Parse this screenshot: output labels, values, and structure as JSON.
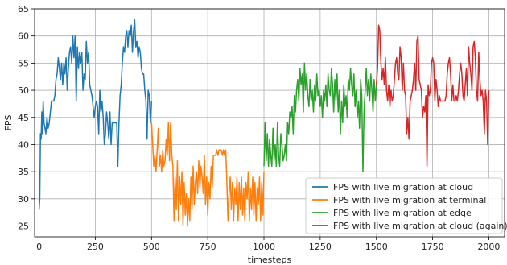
{
  "chart_data": {
    "type": "line",
    "title": "",
    "xlabel": "timesteps",
    "ylabel": "FPS",
    "xlim": [
      -20,
      2070
    ],
    "ylim": [
      23,
      65
    ],
    "xticks": [
      0,
      250,
      500,
      750,
      1000,
      1250,
      1500,
      1750,
      2000
    ],
    "yticks": [
      25,
      30,
      35,
      40,
      45,
      50,
      55,
      60,
      65
    ],
    "grid": true,
    "legend_position": "lower-right",
    "series": [
      {
        "name": "FPS with live migration at cloud",
        "color": "#1f77b4",
        "x": [
          0,
          3,
          6,
          9,
          12,
          15,
          18,
          22,
          26,
          30,
          35,
          40,
          45,
          50,
          55,
          60,
          65,
          70,
          75,
          80,
          85,
          90,
          95,
          100,
          105,
          110,
          115,
          120,
          125,
          130,
          135,
          140,
          145,
          150,
          155,
          160,
          165,
          170,
          175,
          180,
          185,
          190,
          195,
          200,
          205,
          210,
          215,
          220,
          225,
          230,
          235,
          240,
          245,
          250,
          255,
          260,
          265,
          270,
          275,
          280,
          285,
          290,
          295,
          300,
          305,
          310,
          315,
          320,
          325,
          330,
          335,
          340,
          345,
          350,
          355,
          360,
          365,
          370,
          375,
          380,
          385,
          390,
          395,
          400,
          405,
          410,
          415,
          420,
          425,
          430,
          435,
          440,
          445,
          450,
          455,
          460,
          465,
          470,
          475,
          480,
          485,
          490,
          495,
          500
        ],
        "y": [
          28,
          30,
          42,
          41,
          46,
          42,
          48,
          44,
          43,
          42,
          45,
          43,
          44,
          46,
          48,
          48,
          48,
          49,
          52,
          53,
          56,
          54,
          52,
          55,
          51,
          55,
          53,
          56,
          50,
          54,
          57,
          58,
          55,
          60,
          56,
          60,
          48,
          58,
          54,
          57,
          55,
          57,
          50,
          53,
          52,
          59,
          55,
          57,
          51,
          50,
          49,
          47,
          45,
          47,
          48,
          47,
          42,
          50,
          46,
          48,
          45,
          40,
          42,
          46,
          44,
          41,
          46,
          40,
          44,
          44,
          44,
          44,
          44,
          36,
          44,
          49,
          51,
          55,
          58,
          57,
          60,
          61,
          58,
          61,
          60,
          62,
          57,
          61,
          63,
          58,
          59,
          56,
          58,
          57,
          54,
          53,
          53,
          50,
          48,
          41,
          50,
          49,
          44,
          48
        ]
      },
      {
        "name": "FPS with live migration at terminal",
        "color": "#ff7f0e",
        "x": [
          500,
          505,
          510,
          515,
          520,
          525,
          530,
          535,
          540,
          545,
          550,
          555,
          560,
          565,
          570,
          575,
          580,
          585,
          590,
          595,
          600,
          605,
          610,
          615,
          620,
          625,
          630,
          635,
          640,
          645,
          650,
          655,
          660,
          665,
          670,
          675,
          680,
          685,
          690,
          695,
          700,
          705,
          710,
          715,
          720,
          725,
          730,
          735,
          740,
          745,
          750,
          755,
          760,
          765,
          770,
          775,
          780,
          785,
          790,
          795,
          800,
          805,
          810,
          815,
          820,
          825,
          830,
          835,
          840,
          845,
          850,
          855,
          860,
          865,
          870,
          875,
          880,
          885,
          890,
          895,
          900,
          905,
          910,
          915,
          920,
          925,
          930,
          935,
          940,
          945,
          950,
          955,
          960,
          965,
          970,
          975,
          980,
          985,
          990,
          995,
          1000
        ],
        "y": [
          44,
          40,
          36,
          38,
          35,
          39,
          43,
          36,
          38,
          35,
          39,
          36,
          37,
          41,
          38,
          44,
          37,
          44,
          38,
          36,
          26,
          34,
          28,
          37,
          26,
          34,
          29,
          35,
          25,
          33,
          27,
          31,
          25,
          30,
          26,
          34,
          28,
          36,
          29,
          33,
          35,
          31,
          37,
          32,
          36,
          34,
          31,
          38,
          29,
          34,
          27,
          33,
          30,
          36,
          32,
          38,
          38,
          38,
          39,
          38,
          39,
          39,
          39,
          38,
          39,
          38,
          39,
          33,
          26,
          31,
          34,
          28,
          33,
          26,
          32,
          29,
          34,
          26,
          33,
          28,
          34,
          27,
          32,
          26,
          33,
          30,
          35,
          26,
          32,
          28,
          34,
          27,
          33,
          26,
          32,
          29,
          34,
          26,
          33,
          27,
          35
        ]
      },
      {
        "name": "FPS with live migration at edge",
        "color": "#2ca02c",
        "x": [
          1000,
          1005,
          1010,
          1015,
          1020,
          1025,
          1030,
          1035,
          1040,
          1045,
          1050,
          1055,
          1060,
          1065,
          1070,
          1075,
          1080,
          1085,
          1090,
          1095,
          1100,
          1105,
          1110,
          1115,
          1120,
          1125,
          1130,
          1135,
          1140,
          1145,
          1150,
          1155,
          1160,
          1165,
          1170,
          1175,
          1180,
          1185,
          1190,
          1195,
          1200,
          1205,
          1210,
          1215,
          1220,
          1225,
          1230,
          1235,
          1240,
          1245,
          1250,
          1255,
          1260,
          1265,
          1270,
          1275,
          1280,
          1285,
          1290,
          1295,
          1300,
          1305,
          1310,
          1315,
          1320,
          1325,
          1330,
          1335,
          1340,
          1345,
          1350,
          1355,
          1360,
          1365,
          1370,
          1375,
          1380,
          1385,
          1390,
          1395,
          1400,
          1405,
          1410,
          1415,
          1420,
          1425,
          1430,
          1435,
          1440,
          1445,
          1450,
          1455,
          1460,
          1465,
          1470,
          1475,
          1480,
          1485,
          1490,
          1495,
          1500
        ],
        "y": [
          36,
          44,
          37,
          42,
          36,
          41,
          38,
          36,
          43,
          37,
          40,
          36,
          44,
          38,
          36,
          42,
          40,
          37,
          38,
          40,
          37,
          44,
          42,
          46,
          45,
          47,
          42,
          49,
          46,
          50,
          52,
          48,
          54,
          51,
          53,
          46,
          55,
          50,
          53,
          49,
          47,
          52,
          48,
          50,
          46,
          51,
          48,
          53,
          49,
          50,
          47,
          49,
          45,
          50,
          48,
          51,
          47,
          53,
          50,
          49,
          54,
          51,
          46,
          52,
          48,
          53,
          46,
          50,
          42,
          48,
          44,
          51,
          47,
          49,
          45,
          52,
          50,
          54,
          51,
          49,
          53,
          47,
          50,
          45,
          48,
          43,
          52,
          49,
          35,
          46,
          50,
          54,
          49,
          52,
          48,
          53,
          50,
          46,
          52,
          48,
          51
        ]
      },
      {
        "name": "FPS with live migration at cloud (again)",
        "color": "#d62728",
        "x": [
          1500,
          1505,
          1510,
          1515,
          1520,
          1525,
          1530,
          1535,
          1540,
          1545,
          1550,
          1555,
          1560,
          1565,
          1570,
          1575,
          1580,
          1585,
          1590,
          1595,
          1600,
          1605,
          1610,
          1615,
          1620,
          1625,
          1630,
          1635,
          1640,
          1645,
          1650,
          1655,
          1660,
          1665,
          1670,
          1675,
          1680,
          1685,
          1690,
          1695,
          1700,
          1705,
          1710,
          1715,
          1720,
          1725,
          1730,
          1735,
          1740,
          1745,
          1750,
          1755,
          1760,
          1765,
          1770,
          1775,
          1780,
          1785,
          1790,
          1795,
          1800,
          1805,
          1810,
          1815,
          1820,
          1825,
          1830,
          1835,
          1840,
          1845,
          1850,
          1855,
          1860,
          1865,
          1870,
          1875,
          1880,
          1885,
          1890,
          1895,
          1900,
          1905,
          1910,
          1915,
          1920,
          1925,
          1930,
          1935,
          1940,
          1945,
          1950,
          1955,
          1960,
          1965,
          1970,
          1975,
          1980,
          1985,
          1990,
          1995,
          2000
        ],
        "y": [
          51,
          54,
          62,
          61,
          55,
          52,
          54,
          51,
          56,
          50,
          48,
          51,
          47,
          50,
          48,
          49,
          52,
          55,
          56,
          53,
          52,
          58,
          56,
          50,
          55,
          50,
          49,
          42,
          45,
          41,
          48,
          49,
          50,
          52,
          55,
          50,
          59,
          60,
          52,
          51,
          50,
          45,
          47,
          46,
          49,
          36,
          51,
          49,
          50,
          55,
          56,
          55,
          48,
          52,
          50,
          47,
          49,
          48,
          48,
          48,
          48,
          48,
          49,
          53,
          55,
          56,
          53,
          48,
          51,
          48,
          48,
          49,
          48,
          50,
          53,
          55,
          53,
          49,
          48,
          51,
          54,
          49,
          58,
          55,
          53,
          50,
          58,
          59,
          56,
          50,
          48,
          57,
          52,
          49,
          50,
          48,
          42,
          50,
          48,
          40,
          50
        ]
      }
    ]
  }
}
